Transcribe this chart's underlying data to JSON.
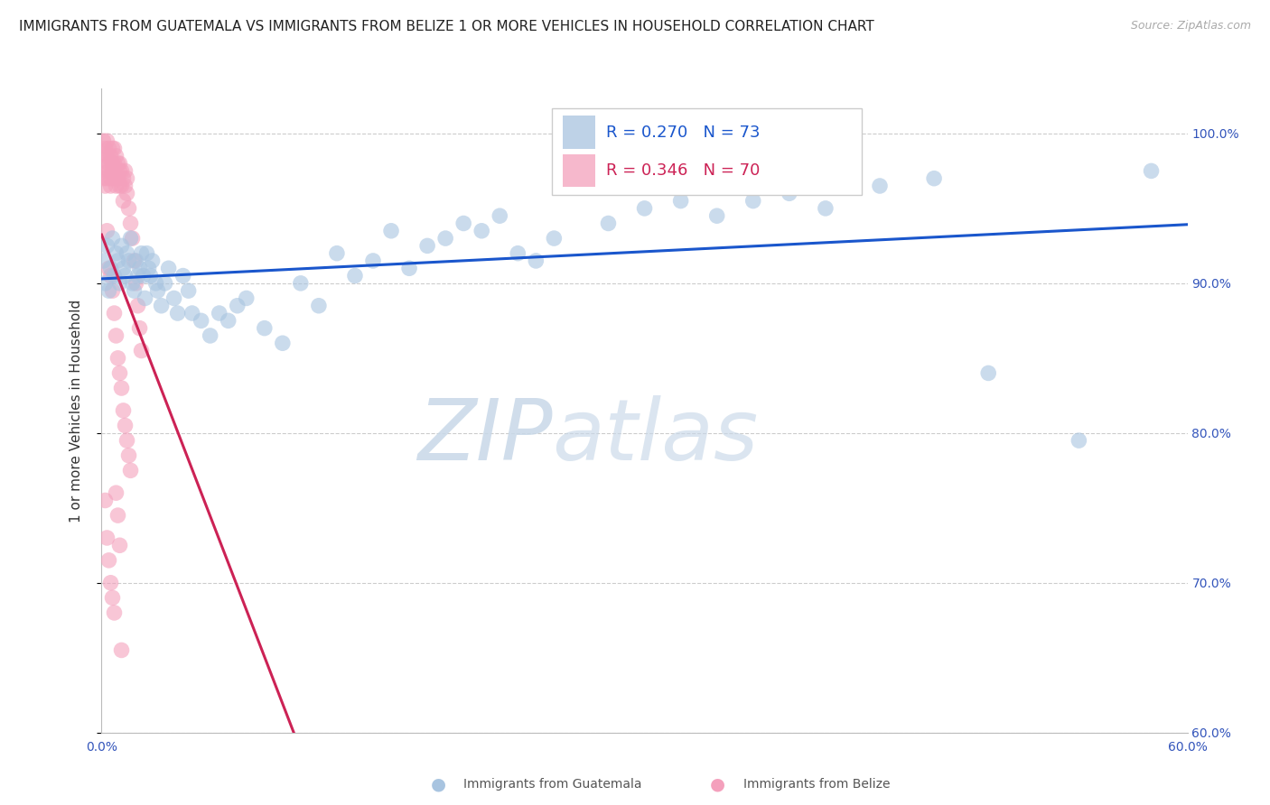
{
  "title": "IMMIGRANTS FROM GUATEMALA VS IMMIGRANTS FROM BELIZE 1 OR MORE VEHICLES IN HOUSEHOLD CORRELATION CHART",
  "source": "Source: ZipAtlas.com",
  "ylabel": "1 or more Vehicles in Household",
  "guatemala_R": 0.27,
  "guatemala_N": 73,
  "belize_R": 0.346,
  "belize_N": 70,
  "guatemala_color": "#a8c4e0",
  "belize_color": "#f4a0bc",
  "trend_guatemala_color": "#1a56cc",
  "trend_belize_color": "#cc2255",
  "xmin": 0.0,
  "xmax": 0.6,
  "ymin": 60.0,
  "ymax": 103.0,
  "yticks": [
    60,
    70,
    80,
    90,
    100
  ],
  "ytick_labels": [
    "60.0%",
    "70.0%",
    "80.0%",
    "90.0%",
    "100.0%"
  ],
  "xticks": [
    0.0,
    0.1,
    0.2,
    0.3,
    0.4,
    0.5,
    0.6
  ],
  "xtick_labels": [
    "0.0%",
    "",
    "",
    "",
    "",
    "",
    "60.0%"
  ],
  "background_color": "#ffffff",
  "grid_color": "#cccccc",
  "title_fontsize": 11,
  "source_fontsize": 9,
  "axis_color": "#3355bb",
  "legend_labels": [
    "Immigrants from Guatemala",
    "Immigrants from Belize"
  ],
  "guat_x": [
    0.001,
    0.002,
    0.003,
    0.004,
    0.005,
    0.006,
    0.007,
    0.008,
    0.009,
    0.01,
    0.011,
    0.012,
    0.013,
    0.014,
    0.015,
    0.016,
    0.017,
    0.018,
    0.019,
    0.02,
    0.021,
    0.022,
    0.023,
    0.024,
    0.025,
    0.026,
    0.027,
    0.028,
    0.03,
    0.031,
    0.033,
    0.035,
    0.037,
    0.04,
    0.042,
    0.045,
    0.048,
    0.05,
    0.055,
    0.06,
    0.065,
    0.07,
    0.075,
    0.08,
    0.09,
    0.1,
    0.11,
    0.12,
    0.13,
    0.14,
    0.15,
    0.16,
    0.17,
    0.18,
    0.19,
    0.2,
    0.21,
    0.22,
    0.23,
    0.24,
    0.25,
    0.28,
    0.3,
    0.32,
    0.34,
    0.36,
    0.38,
    0.4,
    0.43,
    0.46,
    0.49,
    0.54,
    0.58
  ],
  "guat_y": [
    91.5,
    90.0,
    92.5,
    89.5,
    91.0,
    93.0,
    90.5,
    92.0,
    91.5,
    90.0,
    92.5,
    91.0,
    90.5,
    92.0,
    91.5,
    93.0,
    90.0,
    89.5,
    91.5,
    90.5,
    91.0,
    92.0,
    90.5,
    89.0,
    92.0,
    91.0,
    90.5,
    91.5,
    90.0,
    89.5,
    88.5,
    90.0,
    91.0,
    89.0,
    88.0,
    90.5,
    89.5,
    88.0,
    87.5,
    86.5,
    88.0,
    87.5,
    88.5,
    89.0,
    87.0,
    86.0,
    90.0,
    88.5,
    92.0,
    90.5,
    91.5,
    93.5,
    91.0,
    92.5,
    93.0,
    94.0,
    93.5,
    94.5,
    92.0,
    91.5,
    93.0,
    94.0,
    95.0,
    95.5,
    94.5,
    95.5,
    96.0,
    95.0,
    96.5,
    97.0,
    84.0,
    79.5,
    97.5
  ],
  "bel_x": [
    0.001,
    0.001,
    0.001,
    0.002,
    0.002,
    0.002,
    0.002,
    0.003,
    0.003,
    0.003,
    0.004,
    0.004,
    0.004,
    0.005,
    0.005,
    0.005,
    0.006,
    0.006,
    0.006,
    0.007,
    0.007,
    0.007,
    0.008,
    0.008,
    0.008,
    0.009,
    0.009,
    0.01,
    0.01,
    0.01,
    0.011,
    0.011,
    0.012,
    0.012,
    0.013,
    0.013,
    0.014,
    0.014,
    0.015,
    0.016,
    0.017,
    0.018,
    0.019,
    0.02,
    0.021,
    0.022,
    0.003,
    0.004,
    0.005,
    0.006,
    0.007,
    0.008,
    0.009,
    0.01,
    0.011,
    0.012,
    0.013,
    0.014,
    0.015,
    0.016,
    0.002,
    0.003,
    0.004,
    0.005,
    0.006,
    0.007,
    0.008,
    0.009,
    0.01,
    0.011
  ],
  "bel_y": [
    98.0,
    97.0,
    99.5,
    97.5,
    98.5,
    96.5,
    99.0,
    97.0,
    98.5,
    99.5,
    98.0,
    97.5,
    99.0,
    98.5,
    97.0,
    96.5,
    98.0,
    99.0,
    97.5,
    98.0,
    97.5,
    99.0,
    97.0,
    98.5,
    96.5,
    98.0,
    97.0,
    97.5,
    96.5,
    98.0,
    97.5,
    96.5,
    97.0,
    95.5,
    96.5,
    97.5,
    96.0,
    97.0,
    95.0,
    94.0,
    93.0,
    91.5,
    90.0,
    88.5,
    87.0,
    85.5,
    93.5,
    91.0,
    90.5,
    89.5,
    88.0,
    86.5,
    85.0,
    84.0,
    83.0,
    81.5,
    80.5,
    79.5,
    78.5,
    77.5,
    75.5,
    73.0,
    71.5,
    70.0,
    69.0,
    68.0,
    76.0,
    74.5,
    72.5,
    65.5
  ]
}
